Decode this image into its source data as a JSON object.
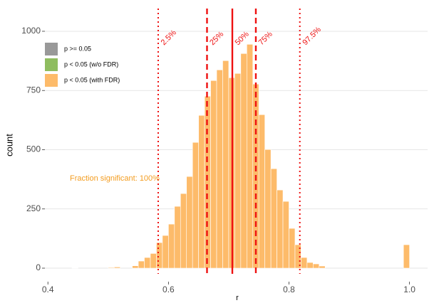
{
  "chart_data": {
    "type": "histogram",
    "xlabel": "r",
    "ylabel": "count",
    "bins": [
      0.43,
      0.44,
      0.45,
      0.46,
      0.47,
      0.48,
      0.49,
      0.5,
      0.51,
      0.52,
      0.53,
      0.54,
      0.55,
      0.56,
      0.57,
      0.58,
      0.59,
      0.6,
      0.61,
      0.62,
      0.63,
      0.64,
      0.65,
      0.66,
      0.67,
      0.68,
      0.69,
      0.7,
      0.71,
      0.72,
      0.73,
      0.74,
      0.75,
      0.76,
      0.77,
      0.78,
      0.79,
      0.8,
      0.81,
      0.82,
      0.83,
      0.84,
      0.85,
      0.86,
      0.87,
      0.88,
      0.89,
      0.9,
      0.91,
      0.92,
      0.93,
      0.94,
      0.95,
      0.96,
      0.97,
      0.98,
      0.99,
      1.0
    ],
    "values": [
      0,
      1,
      0,
      0,
      0,
      0,
      0,
      3,
      5,
      0,
      0,
      10,
      30,
      45,
      62,
      108,
      138,
      186,
      261,
      315,
      387,
      531,
      645,
      726,
      792,
      837,
      876,
      804,
      822,
      906,
      945,
      777,
      648,
      501,
      420,
      330,
      282,
      168,
      99,
      45,
      24,
      18,
      9,
      0,
      0,
      0,
      0,
      0,
      0,
      0,
      0,
      0,
      0,
      0,
      0,
      0,
      99
    ],
    "color": "#fdbb6a",
    "xlim": [
      0.395,
      1.03
    ],
    "ylim": [
      -57,
      1096
    ],
    "xticks": [
      0.4,
      0.6,
      0.8,
      {
        "value": 1,
        "label": "1.0"
      }
    ],
    "yticks": [
      0,
      250,
      500,
      750,
      1000
    ],
    "grid": true,
    "legend": [
      {
        "name": "p >= 0.05",
        "color": "#999999"
      },
      {
        "name": "p < 0.05 (w/o FDR)",
        "color": "#8fbd5f"
      },
      {
        "name": "p < 0.05 (with FDR)",
        "color": "#fdbb6a"
      }
    ],
    "percentile_color": "#ee1111",
    "percentiles": [
      {
        "label": "2.5%",
        "value": 0.583,
        "style": "dotted"
      },
      {
        "label": "25%",
        "value": 0.664,
        "style": "dashed"
      },
      {
        "label": "50%",
        "value": 0.706,
        "style": "solid"
      },
      {
        "label": "75%",
        "value": 0.745,
        "style": "dashed"
      },
      {
        "label": "97.5%",
        "value": 0.818,
        "style": "dotted"
      }
    ],
    "annotation": "Fraction significant: 100%",
    "annotation_color": "#f39c1f"
  }
}
